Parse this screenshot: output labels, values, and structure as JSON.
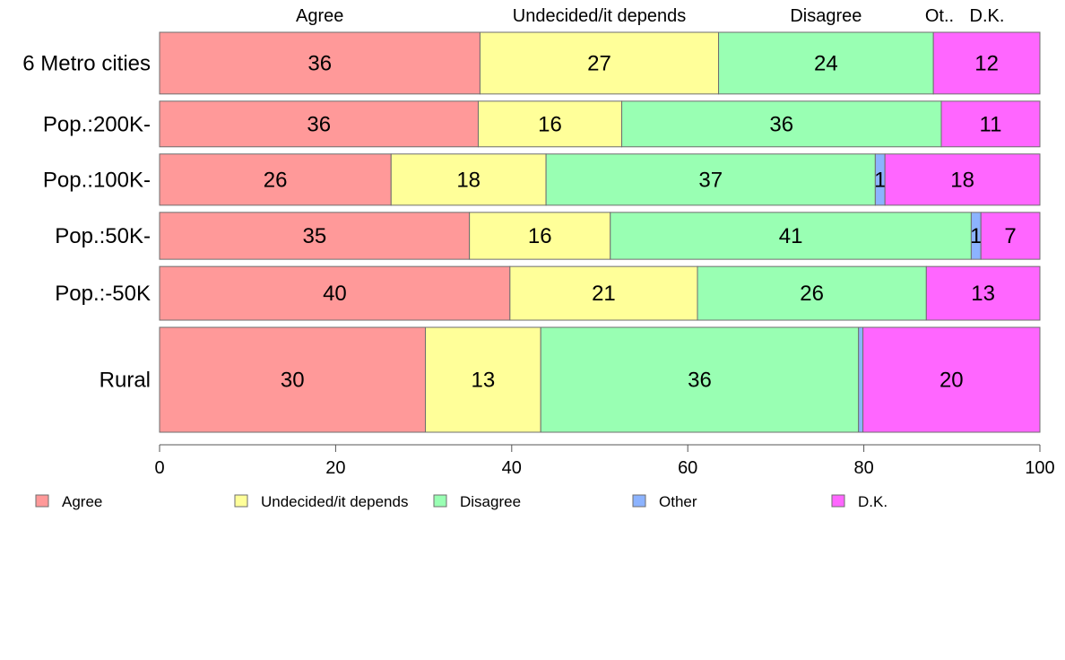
{
  "chart_data": {
    "type": "bar",
    "orientation": "horizontal",
    "stacked": true,
    "title": "",
    "xlabel": "",
    "ylabel": "",
    "xlim": [
      0,
      100
    ],
    "xticks": [
      0,
      20,
      40,
      60,
      80,
      100
    ],
    "grid": false,
    "legend_position": "bottom",
    "categories": [
      "6 Metro cities",
      "Pop.:200K-",
      "Pop.:100K-",
      "Pop.:50K-",
      "Pop.:-50K",
      "Rural"
    ],
    "category_weights": [
      1.0,
      0.74,
      0.83,
      0.76,
      0.87,
      1.7
    ],
    "series": [
      {
        "name": "Agree",
        "color": "#ff9999",
        "values": [
          36.4,
          36.2,
          26.3,
          35.2,
          39.8,
          30.2
        ]
      },
      {
        "name": "Undecided/it depends",
        "color": "#ffff99",
        "values": [
          27.1,
          16.3,
          17.6,
          16.0,
          21.3,
          13.1
        ]
      },
      {
        "name": "Disagree",
        "color": "#99ffb3",
        "values": [
          24.4,
          36.3,
          37.4,
          41.0,
          26.0,
          36.1
        ]
      },
      {
        "name": "Other",
        "color": "#8cb3ff",
        "values": [
          0.0,
          0.0,
          1.1,
          1.1,
          0.0,
          0.5
        ]
      },
      {
        "name": "D.K.",
        "color": "#ff66ff",
        "values": [
          12.1,
          11.2,
          17.6,
          6.7,
          12.9,
          20.1
        ]
      }
    ],
    "data_labels": [
      [
        "36",
        "27",
        "24",
        "",
        "12"
      ],
      [
        "36",
        "16",
        "36",
        "",
        "11"
      ],
      [
        "26",
        "18",
        "37",
        "1",
        "18"
      ],
      [
        "35",
        "16",
        "41",
        "1",
        "7"
      ],
      [
        "40",
        "21",
        "26",
        "",
        "13"
      ],
      [
        "30",
        "13",
        "36",
        "",
        "20"
      ]
    ],
    "column_headers": [
      "Agree",
      "Undecided/it depends",
      "Disagree",
      "Ot..",
      "D.K."
    ]
  }
}
